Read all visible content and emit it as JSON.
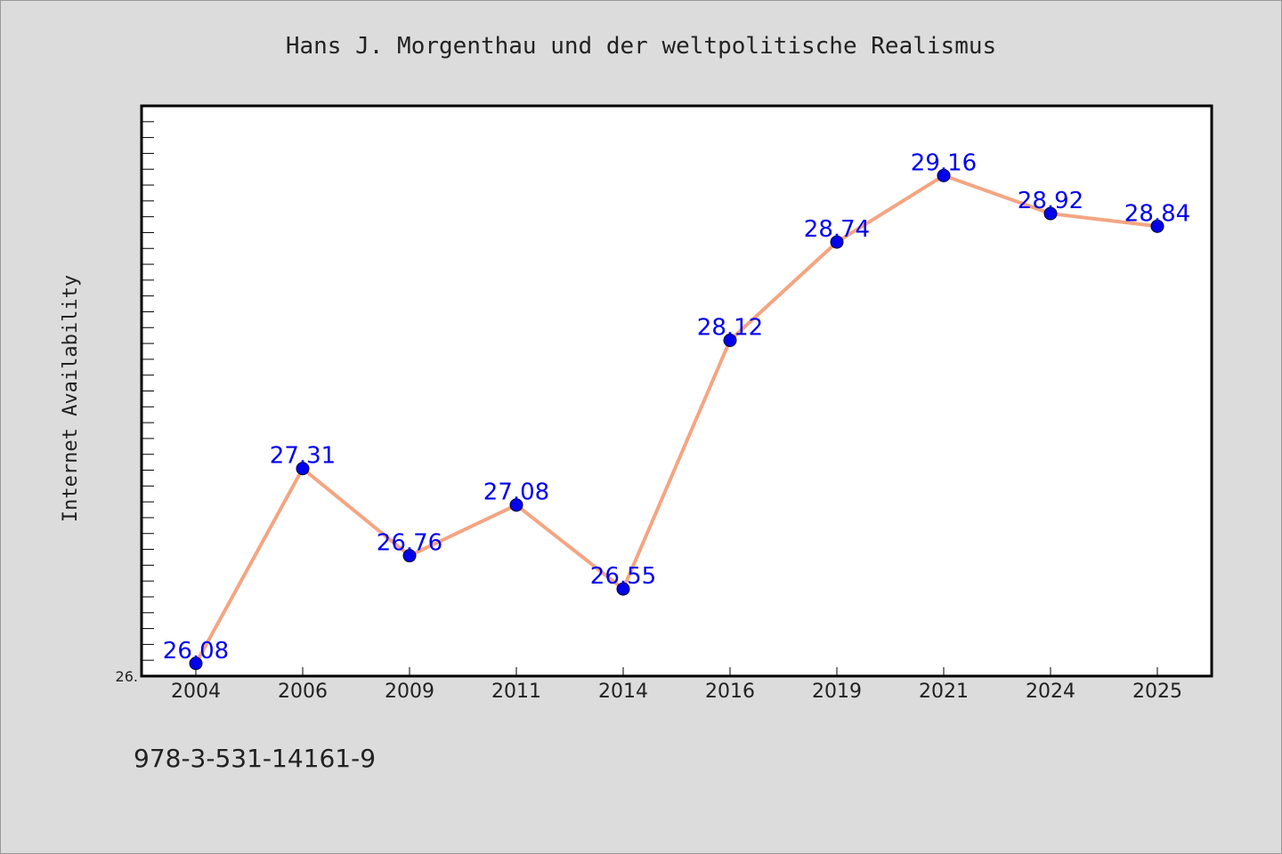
{
  "chart_data": {
    "type": "line",
    "title": "Hans J. Morgenthau und der weltpolitische Realismus",
    "xlabel": "",
    "ylabel": "Internet Availability",
    "categories": [
      "2004",
      "2006",
      "2009",
      "2011",
      "2014",
      "2016",
      "2019",
      "2021",
      "2024",
      "2025"
    ],
    "series": [
      {
        "values": [
          26.08,
          27.31,
          26.76,
          27.08,
          26.55,
          28.12,
          28.74,
          29.16,
          28.92,
          28.84
        ]
      }
    ],
    "value_labels": [
      "26.08",
      "27.31",
      "26.76",
      "27.08",
      "26.55",
      "28.12",
      "28.74",
      "29.16",
      "28.92",
      "28.84"
    ],
    "ylim": [
      26.0,
      29.6
    ],
    "y_min_label": "26.",
    "grid": false,
    "legend": "none",
    "colors": {
      "line": "#f4a582",
      "marker": "#0000ee",
      "value_label": "#0000ee",
      "background": "#dcdcdc",
      "plot_background": "#ffffff"
    }
  },
  "footer": {
    "isbn": "978-3-531-14161-9"
  }
}
